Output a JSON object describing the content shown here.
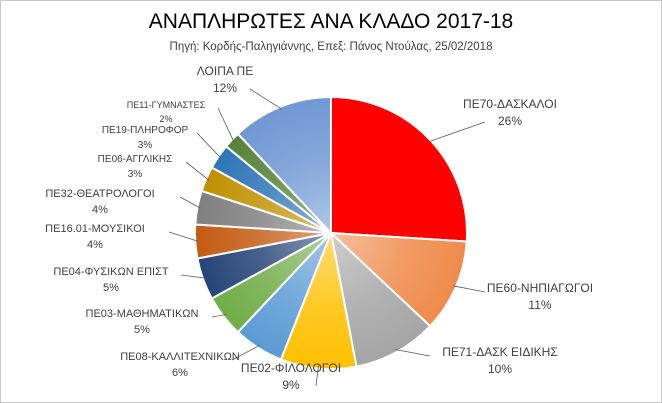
{
  "chart_data": {
    "type": "pie",
    "title": "ΑΝΑΠΛΗΡΩΤΕΣ ΑΝΑ ΚΛΑΔΟ 2017-18",
    "subtitle": "Πηγή:  Κορδής-Παληγιάννης, Επεξ: Πάνος Ντούλας, 25/02/2018",
    "legend": "none",
    "slices": [
      {
        "label": "ΠΕ70-ΔΑΣΚΑΛΟΙ",
        "pct_label": "26%",
        "value": 26,
        "color": "#ff0000"
      },
      {
        "label": "ΠΕ60-ΝΗΠΙΑΓΩΓΟΙ",
        "pct_label": "11%",
        "value": 11,
        "color": "#f08a4b"
      },
      {
        "label": "ΠΕ71-ΔΑΣΚ ΕΙΔΙΚΗΣ",
        "pct_label": "10%",
        "value": 10,
        "color": "#a5a5a5"
      },
      {
        "label": "ΠΕ02-ΦΙΛΟΛΟΓΟΙ",
        "pct_label": "9%",
        "value": 9,
        "color": "#ffc000"
      },
      {
        "label": "ΠΕ08-ΚΑΛΛΙΤΕΧΝΙΚΩΝ",
        "pct_label": "6%",
        "value": 6,
        "color": "#5b9bd5"
      },
      {
        "label": "ΠΕ03-ΜΑΘΗΜΑΤΙΚΩΝ",
        "pct_label": "5%",
        "value": 5,
        "color": "#70ad47"
      },
      {
        "label": "ΠΕ04-ΦΥΣΙΚΩΝ ΕΠΙΣΤ",
        "pct_label": "5%",
        "value": 5,
        "color": "#264478"
      },
      {
        "label": "ΠΕ16.01-ΜΟΥΣΙΚΟΙ",
        "pct_label": "4%",
        "value": 4,
        "color": "#c55a11"
      },
      {
        "label": "ΠΕ32-ΘΕΑΤΡΟΛΟΓΟΙ",
        "pct_label": "4%",
        "value": 4,
        "color": "#7f7f7f"
      },
      {
        "label": "ΠΕ06-ΑΓΓΛΙΚΗΣ",
        "pct_label": "3%",
        "value": 3,
        "color": "#bf9000"
      },
      {
        "label": "ΠΕ19-ΠΛΗΡΟΦΟΡ",
        "pct_label": "3%",
        "value": 3,
        "color": "#2e75b6"
      },
      {
        "label": "ΠΕ11-ΓΥΜΝΑΣΤΕΣ",
        "pct_label": "2%",
        "value": 2,
        "color": "#548235"
      },
      {
        "label": "ΛΟΙΠΑ ΠΕ",
        "pct_label": "12%",
        "value": 12,
        "color": "#6f98d4"
      }
    ]
  }
}
